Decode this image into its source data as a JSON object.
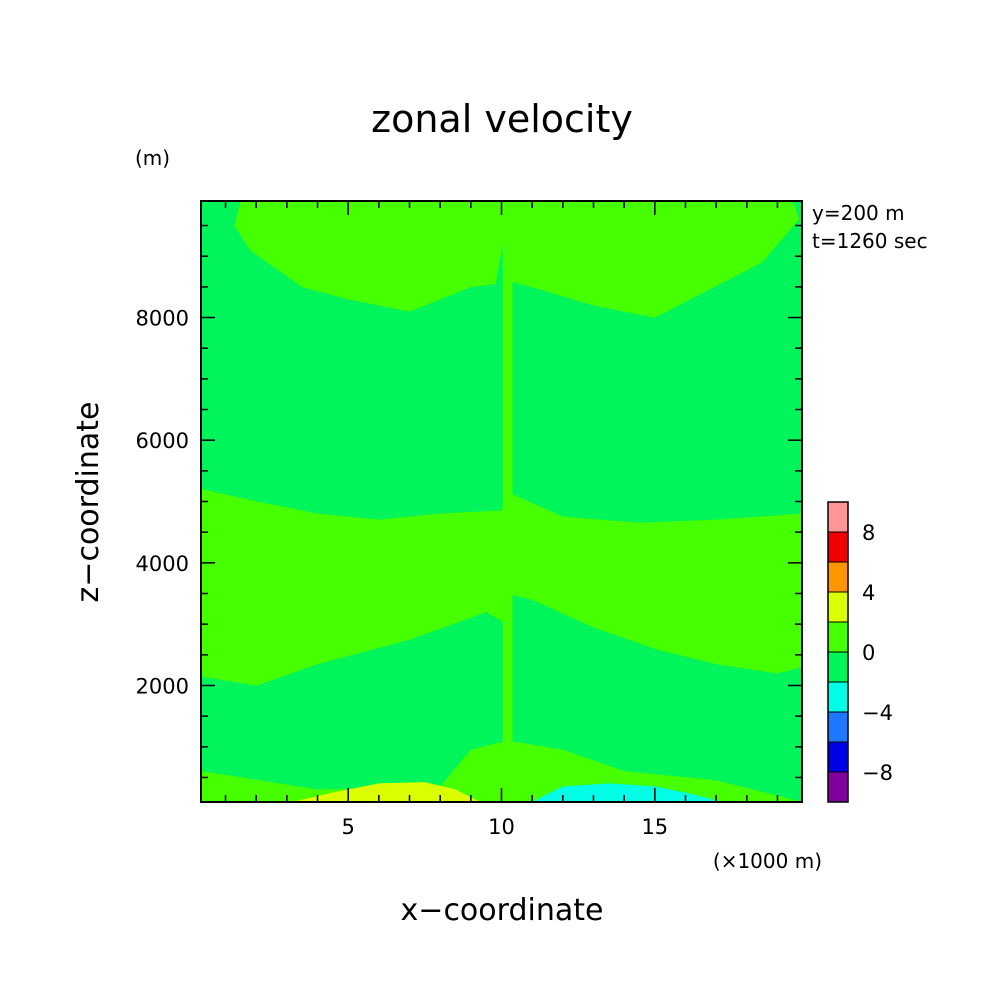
{
  "chart_data": {
    "type": "heatmap",
    "title": "zonal velocity",
    "xlabel": "x−coordinate",
    "ylabel": "z−coordinate",
    "x_unit": "(×1000 m)",
    "y_unit": "(m)",
    "annotations": [
      "y=200 m",
      "t=1260 sec"
    ],
    "xlim": [
      0.2,
      19.8
    ],
    "ylim": [
      100,
      9900
    ],
    "x_ticks": [
      5,
      10,
      15
    ],
    "y_ticks": [
      2000,
      4000,
      6000,
      8000
    ],
    "x_tick_labels": [
      "5",
      "10",
      "15"
    ],
    "y_tick_labels": [
      "2000",
      "4000",
      "6000",
      "8000"
    ],
    "colorbar": {
      "levels": [
        -10,
        -8,
        -6,
        -4,
        -2,
        0,
        2,
        4,
        6,
        8,
        10
      ],
      "colors": [
        "#8000a0",
        "#0000e6",
        "#1e78ff",
        "#00ffe6",
        "#00f55a",
        "#46ff00",
        "#dcff00",
        "#ff9600",
        "#f00000",
        "#ff9696"
      ],
      "tick_values": [
        -8,
        -4,
        0,
        4,
        8
      ],
      "tick_labels": [
        "−8",
        "−4",
        "0",
        "4",
        "8"
      ]
    },
    "background_color": "#00f55a",
    "regions": [
      {
        "value_range": [
          0,
          2
        ],
        "color": "#46ff00",
        "polygon": [
          [
            1.5,
            9900
          ],
          [
            1.3,
            9500
          ],
          [
            1.8,
            9100
          ],
          [
            3.5,
            8500
          ],
          [
            5,
            8300
          ],
          [
            7,
            8100
          ],
          [
            9,
            8500
          ],
          [
            9.8,
            8550
          ],
          [
            10.2,
            9650
          ],
          [
            10.1,
            9900
          ]
        ]
      },
      {
        "value_range": [
          0,
          2
        ],
        "color": "#46ff00",
        "polygon": [
          [
            10.2,
            9900
          ],
          [
            19.5,
            9900
          ],
          [
            19.7,
            9600
          ],
          [
            18.5,
            8900
          ],
          [
            15,
            8000
          ],
          [
            13,
            8200
          ],
          [
            11,
            8500
          ],
          [
            10.2,
            8600
          ]
        ]
      },
      {
        "value_range": [
          0,
          2
        ],
        "color": "#46ff00",
        "polygon": [
          [
            0.2,
            5200
          ],
          [
            2,
            5000
          ],
          [
            4,
            4800
          ],
          [
            6,
            4700
          ],
          [
            8,
            4800
          ],
          [
            10,
            4850
          ],
          [
            10.2,
            5150
          ],
          [
            10.2,
            3000
          ],
          [
            9.5,
            3200
          ],
          [
            7,
            2750
          ],
          [
            4,
            2350
          ],
          [
            2,
            2000
          ],
          [
            0.2,
            2150
          ]
        ]
      },
      {
        "value_range": [
          0,
          2
        ],
        "color": "#46ff00",
        "polygon": [
          [
            10.2,
            3500
          ],
          [
            11,
            3400
          ],
          [
            13,
            2950
          ],
          [
            15,
            2600
          ],
          [
            17,
            2350
          ],
          [
            19,
            2200
          ],
          [
            19.8,
            2300
          ],
          [
            19.8,
            4800
          ],
          [
            17,
            4700
          ],
          [
            14.5,
            4650
          ],
          [
            12,
            4750
          ],
          [
            10.2,
            5150
          ]
        ]
      },
      {
        "value_range": [
          0,
          2
        ],
        "color": "#46ff00",
        "polygon": [
          [
            0.2,
            600
          ],
          [
            1.5,
            500
          ],
          [
            4,
            300
          ],
          [
            8,
            350
          ],
          [
            9,
            950
          ],
          [
            10.2,
            1100
          ],
          [
            10.2,
            100
          ],
          [
            0.2,
            100
          ]
        ]
      },
      {
        "value_range": [
          0,
          2
        ],
        "color": "#46ff00",
        "polygon": [
          [
            10.2,
            1100
          ],
          [
            12,
            950
          ],
          [
            14,
            600
          ],
          [
            17,
            450
          ],
          [
            19,
            200
          ],
          [
            19.8,
            100
          ],
          [
            10.2,
            100
          ]
        ]
      },
      {
        "value_range": [
          0,
          2
        ],
        "color": "#46ff00",
        "polygon": [
          [
            10.05,
            9900
          ],
          [
            10.35,
            9900
          ],
          [
            10.35,
            100
          ],
          [
            10.05,
            100
          ]
        ]
      },
      {
        "value_range": [
          2,
          4
        ],
        "color": "#dcff00",
        "polygon": [
          [
            3.2,
            100
          ],
          [
            4.5,
            250
          ],
          [
            6,
            400
          ],
          [
            7.5,
            420
          ],
          [
            8.5,
            300
          ],
          [
            9.3,
            100
          ]
        ]
      },
      {
        "value_range": [
          -4,
          -2
        ],
        "color": "#00ffe6",
        "polygon": [
          [
            11,
            100
          ],
          [
            12,
            350
          ],
          [
            13.5,
            400
          ],
          [
            15,
            350
          ],
          [
            16,
            250
          ],
          [
            17.2,
            100
          ]
        ]
      }
    ]
  }
}
